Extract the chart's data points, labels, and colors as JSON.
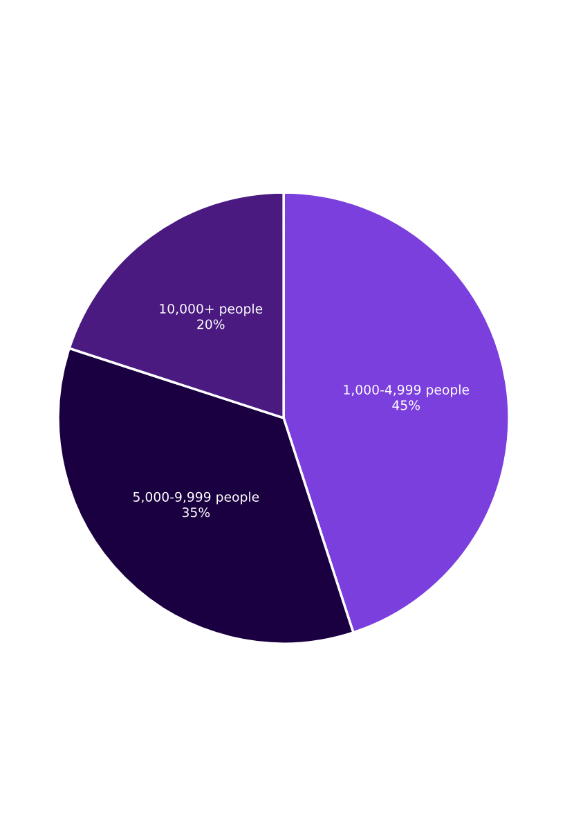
{
  "chart_data": {
    "type": "pie",
    "categories": [
      "1,000-4,999 people",
      "5,000-9,999 people",
      "10,000+ people"
    ],
    "values": [
      45,
      35,
      20
    ],
    "value_labels": [
      "45%",
      "35%",
      "20%"
    ],
    "colors": [
      "#7b3fde",
      "#1a0040",
      "#4a1a80"
    ],
    "legend": false
  }
}
